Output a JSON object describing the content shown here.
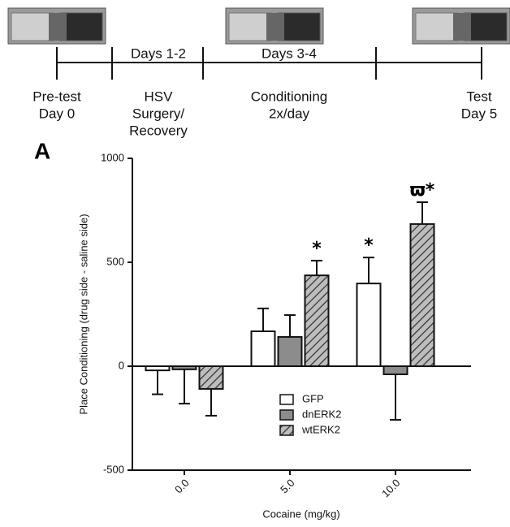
{
  "timeline": {
    "above": [
      "Days 1-2",
      "Days 3-4"
    ],
    "below": [
      [
        "Pre-test",
        "Day 0"
      ],
      [
        "HSV",
        "Surgery/",
        "Recovery"
      ],
      [
        "Conditioning",
        "2x/day"
      ],
      [
        "Test",
        "Day 5"
      ]
    ]
  },
  "panel_label": "A",
  "chart_data": {
    "type": "bar",
    "y_label": "Place Conditioning (drug side - saline side)",
    "x_label": "Cocaine (mg/kg)",
    "categories": [
      "0.0",
      "5.0",
      "10.0"
    ],
    "series": [
      {
        "name": "GFP",
        "color": "#ffffff",
        "hatch": false,
        "values": [
          -20,
          168,
          398
        ],
        "errors": [
          115,
          110,
          125
        ],
        "markers": [
          null,
          null,
          "*"
        ]
      },
      {
        "name": "dnERK2",
        "color": "#8c8c8c",
        "hatch": false,
        "values": [
          -15,
          141,
          -39
        ],
        "errors": [
          165,
          105,
          219
        ],
        "markers": [
          null,
          null,
          null
        ]
      },
      {
        "name": "wtERK2",
        "color": "#bdbdbd",
        "hatch": true,
        "values": [
          -109,
          437,
          684
        ],
        "errors": [
          129,
          71,
          105
        ],
        "markers": [
          null,
          "*",
          "ϖ*"
        ]
      }
    ],
    "ylim": [
      -500,
      1000
    ],
    "yticks": [
      -500,
      0,
      500,
      1000
    ],
    "grid": false,
    "legend": "lower-right"
  }
}
